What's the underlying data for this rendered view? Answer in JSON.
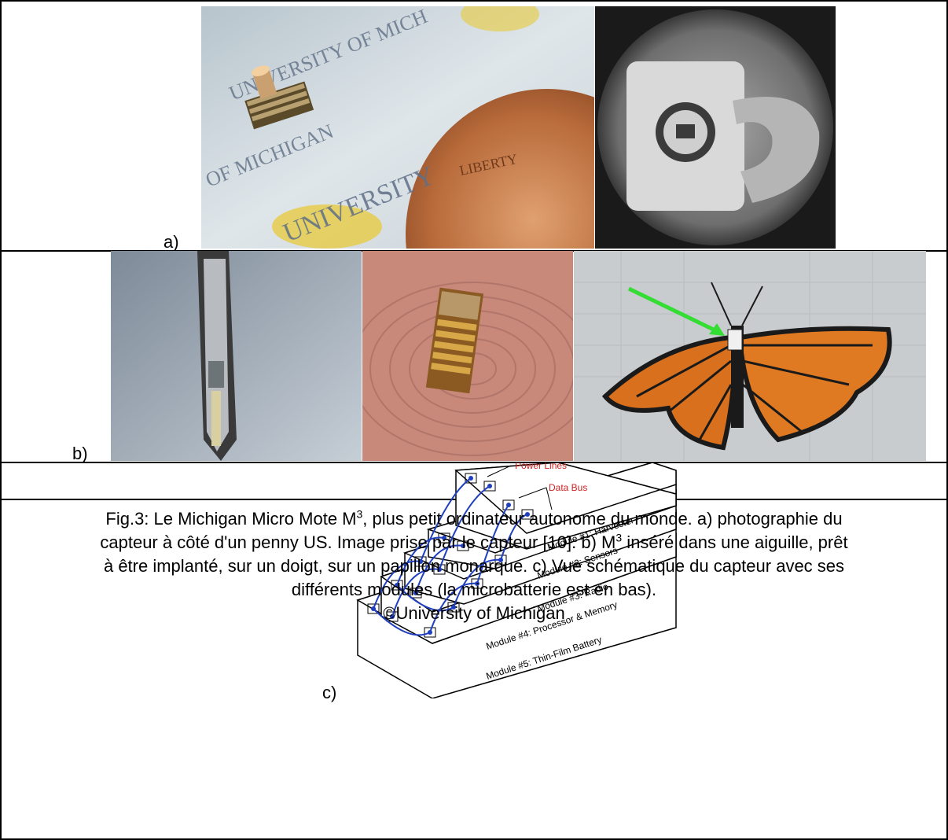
{
  "panels": {
    "a": {
      "label": "a)"
    },
    "b": {
      "label": "b)"
    },
    "c": {
      "label": "c)",
      "diagram": {
        "power_lines": "Power Lines",
        "data_bus": "Data Bus",
        "modules": [
          "Module #1: Harvester",
          "Module #2: Sensors",
          "Module #3: Radio",
          "Module #4: Processor & Memory",
          "Module #5: Thin-Film Battery"
        ],
        "connection_color": "#1f3fbf",
        "annotation_color": "#cc2222"
      }
    }
  },
  "photos": {
    "penny_text_1": "UNIVERSITY OF MICH",
    "penny_text_2": "OF MICHIGAN",
    "penny_text_3": "UNIVERSITY",
    "penny_text_4": "LIBERTY",
    "arrow_color": "#33dd33"
  },
  "caption": {
    "line1_a": "Fig.3: Le Michigan Micro Mote M",
    "sup1": "3",
    "line1_b": ", plus petit ordinateur autonome du monde. a) photographie du",
    "line2": "capteur à côté d'un penny US. Image prise par le capteur [10]. b) M",
    "sup2": "3",
    "line2_b": " inséré dans une aiguille, prêt",
    "line3": "à être implanté, sur un doigt, sur un papillon monarque. c) Vue schématique du capteur avec ses",
    "line4": "différents modules (la microbatterie est en bas).",
    "copyright": "©University of Michigan"
  }
}
